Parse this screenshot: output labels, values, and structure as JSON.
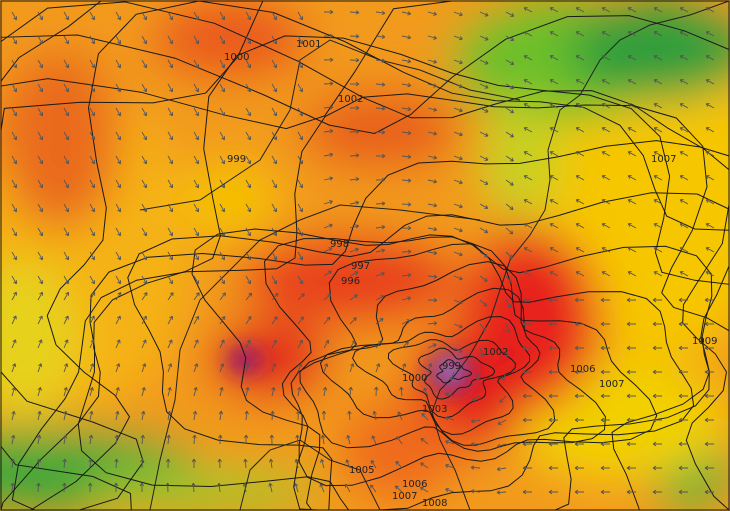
{
  "map": {
    "type": "surface pressure isobars (hPa) with wind vectors over precipitation/wind intensity field",
    "colors": {
      "low": "#3aa83a",
      "mid": "#f5c800",
      "medium_high": "#f08a1a",
      "high": "#e8201a",
      "extreme": "#7a1a8a"
    },
    "isobar_labels": [
      {
        "text": "1001",
        "near": "north"
      },
      {
        "text": "1000",
        "near": "north-west"
      },
      {
        "text": "1002",
        "near": "north-center"
      },
      {
        "text": "999",
        "near": "west"
      },
      {
        "text": "1007",
        "near": "east"
      },
      {
        "text": "998",
        "near": "center"
      },
      {
        "text": "997",
        "near": "center"
      },
      {
        "text": "996",
        "near": "center"
      },
      {
        "text": "1009",
        "near": "east"
      },
      {
        "text": "1002",
        "near": "cyclone east"
      },
      {
        "text": "999",
        "near": "cyclone center"
      },
      {
        "text": "1000",
        "near": "cyclone west"
      },
      {
        "text": "1003",
        "near": "cyclone south"
      },
      {
        "text": "1006",
        "near": "south-east"
      },
      {
        "text": "1007",
        "near": "south-east"
      },
      {
        "text": "1005",
        "near": "south"
      },
      {
        "text": "1006",
        "near": "south"
      },
      {
        "text": "1007",
        "near": "south"
      },
      {
        "text": "1008",
        "near": "south"
      }
    ]
  }
}
